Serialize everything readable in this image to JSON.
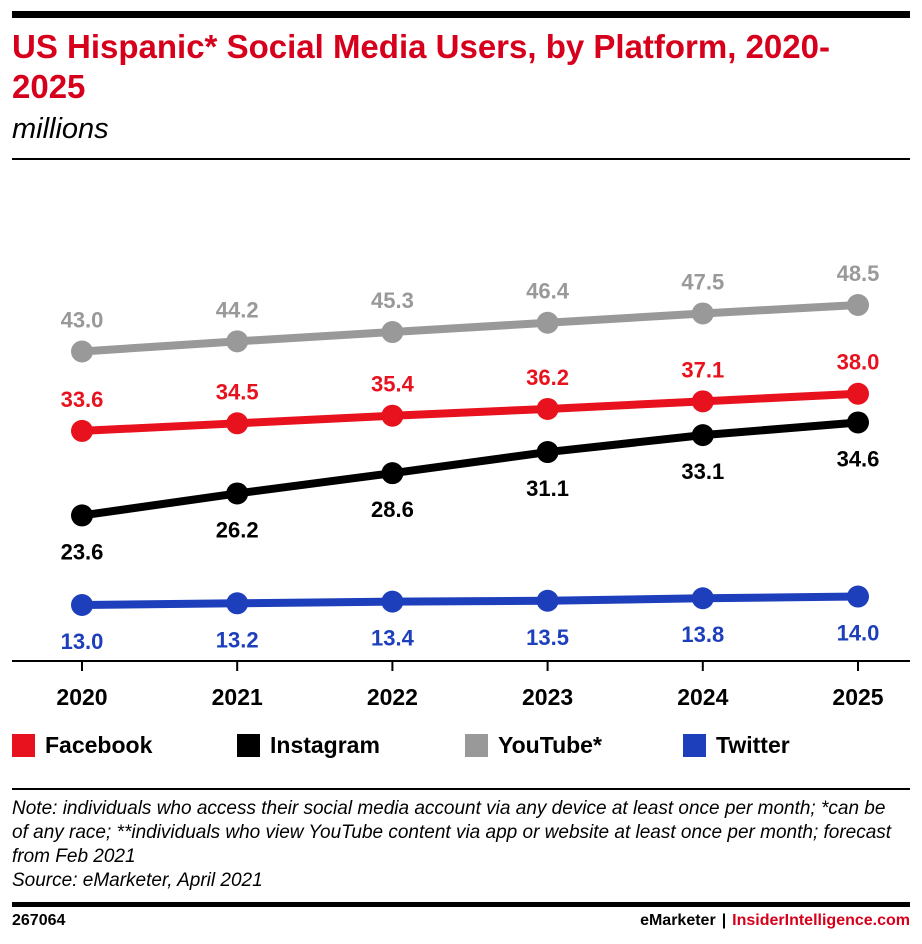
{
  "header": {
    "title": "US Hispanic* Social Media Users, by Platform, 2020-2025",
    "subtitle": "millions"
  },
  "chart_data": {
    "type": "line",
    "title": "US Hispanic* Social Media Users, by Platform, 2020-2025",
    "subtitle": "millions",
    "x": [
      "2020",
      "2021",
      "2022",
      "2023",
      "2024",
      "2025"
    ],
    "ylim": [
      0,
      50
    ],
    "grid": false,
    "legend_position": "bottom",
    "series": [
      {
        "name": "YouTube*",
        "color": "#999999",
        "values": [
          43.0,
          44.2,
          45.3,
          46.4,
          47.5,
          48.5
        ],
        "labels": [
          "43.0",
          "44.2",
          "45.3",
          "46.4",
          "47.5",
          "48.5"
        ],
        "label_position": "above"
      },
      {
        "name": "Facebook",
        "color": "#e8121e",
        "values": [
          33.6,
          34.5,
          35.4,
          36.2,
          37.1,
          38.0
        ],
        "labels": [
          "33.6",
          "34.5",
          "35.4",
          "36.2",
          "37.1",
          "38.0"
        ],
        "label_position": "above"
      },
      {
        "name": "Instagram",
        "color": "#000000",
        "values": [
          23.6,
          26.2,
          28.6,
          31.1,
          33.1,
          34.6
        ],
        "labels": [
          "23.6",
          "26.2",
          "28.6",
          "31.1",
          "33.1",
          "34.6"
        ],
        "label_position": "below"
      },
      {
        "name": "Twitter",
        "color": "#1d3fbb",
        "values": [
          13.0,
          13.2,
          13.4,
          13.5,
          13.8,
          14.0
        ],
        "labels": [
          "13.0",
          "13.2",
          "13.4",
          "13.5",
          "13.8",
          "14.0"
        ],
        "label_position": "below"
      }
    ]
  },
  "legend": [
    {
      "label": "Facebook",
      "color": "#e8121e"
    },
    {
      "label": "Instagram",
      "color": "#000000"
    },
    {
      "label": "YouTube*",
      "color": "#999999"
    },
    {
      "label": "Twitter",
      "color": "#1d3fbb"
    }
  ],
  "note": {
    "lines": [
      "Note: individuals who access their social media account via any device at least once per month; *can be of any race; **individuals who view YouTube content via app or website at least once per month; forecast from Feb 2021",
      "Source: eMarketer, April 2021"
    ]
  },
  "footer": {
    "chart_id": "267064",
    "brand_left": "eMarketer",
    "separator": "|",
    "brand_right": "InsiderIntelligence.com"
  }
}
